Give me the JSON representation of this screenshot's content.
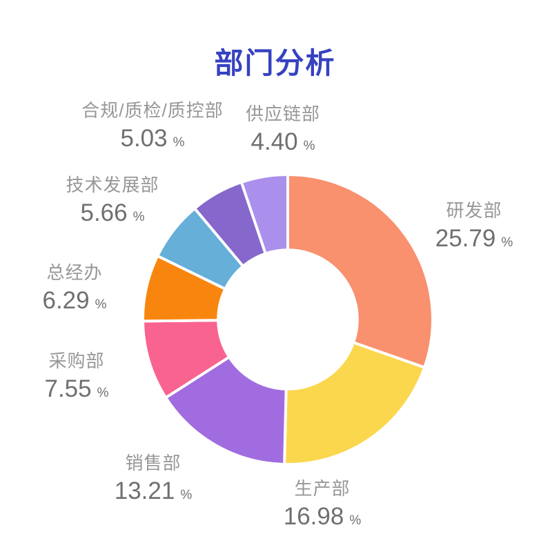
{
  "chart_data": {
    "type": "pie",
    "subtype": "donut",
    "title": "部门分析",
    "title_color": "#3642C0",
    "unit": "%",
    "categories": [
      "研发部",
      "生产部",
      "销售部",
      "采购部",
      "总经办",
      "技术发展部",
      "合规/质检/质控部",
      "供应链部"
    ],
    "values": [
      25.79,
      16.98,
      13.21,
      7.55,
      6.29,
      5.66,
      5.03,
      4.4
    ],
    "value_labels": [
      "25.79",
      "16.98",
      "13.21",
      "7.55",
      "6.29",
      "5.66",
      "5.03",
      "4.40"
    ],
    "colors": [
      "#F9906E",
      "#FBD74D",
      "#A16CE0",
      "#F9638F",
      "#F8860E",
      "#65AFD9",
      "#8667CB",
      "#AA90EC"
    ],
    "slice_order": "clockwise-from-12-oclock",
    "angles_normalized_to_full_circle": true,
    "inner_radius_ratio": 0.48,
    "slice_gap_color": "#FFFFFF",
    "legend_position": "none",
    "label_name_color": "#979797",
    "label_value_color": "#6F6F6F"
  }
}
